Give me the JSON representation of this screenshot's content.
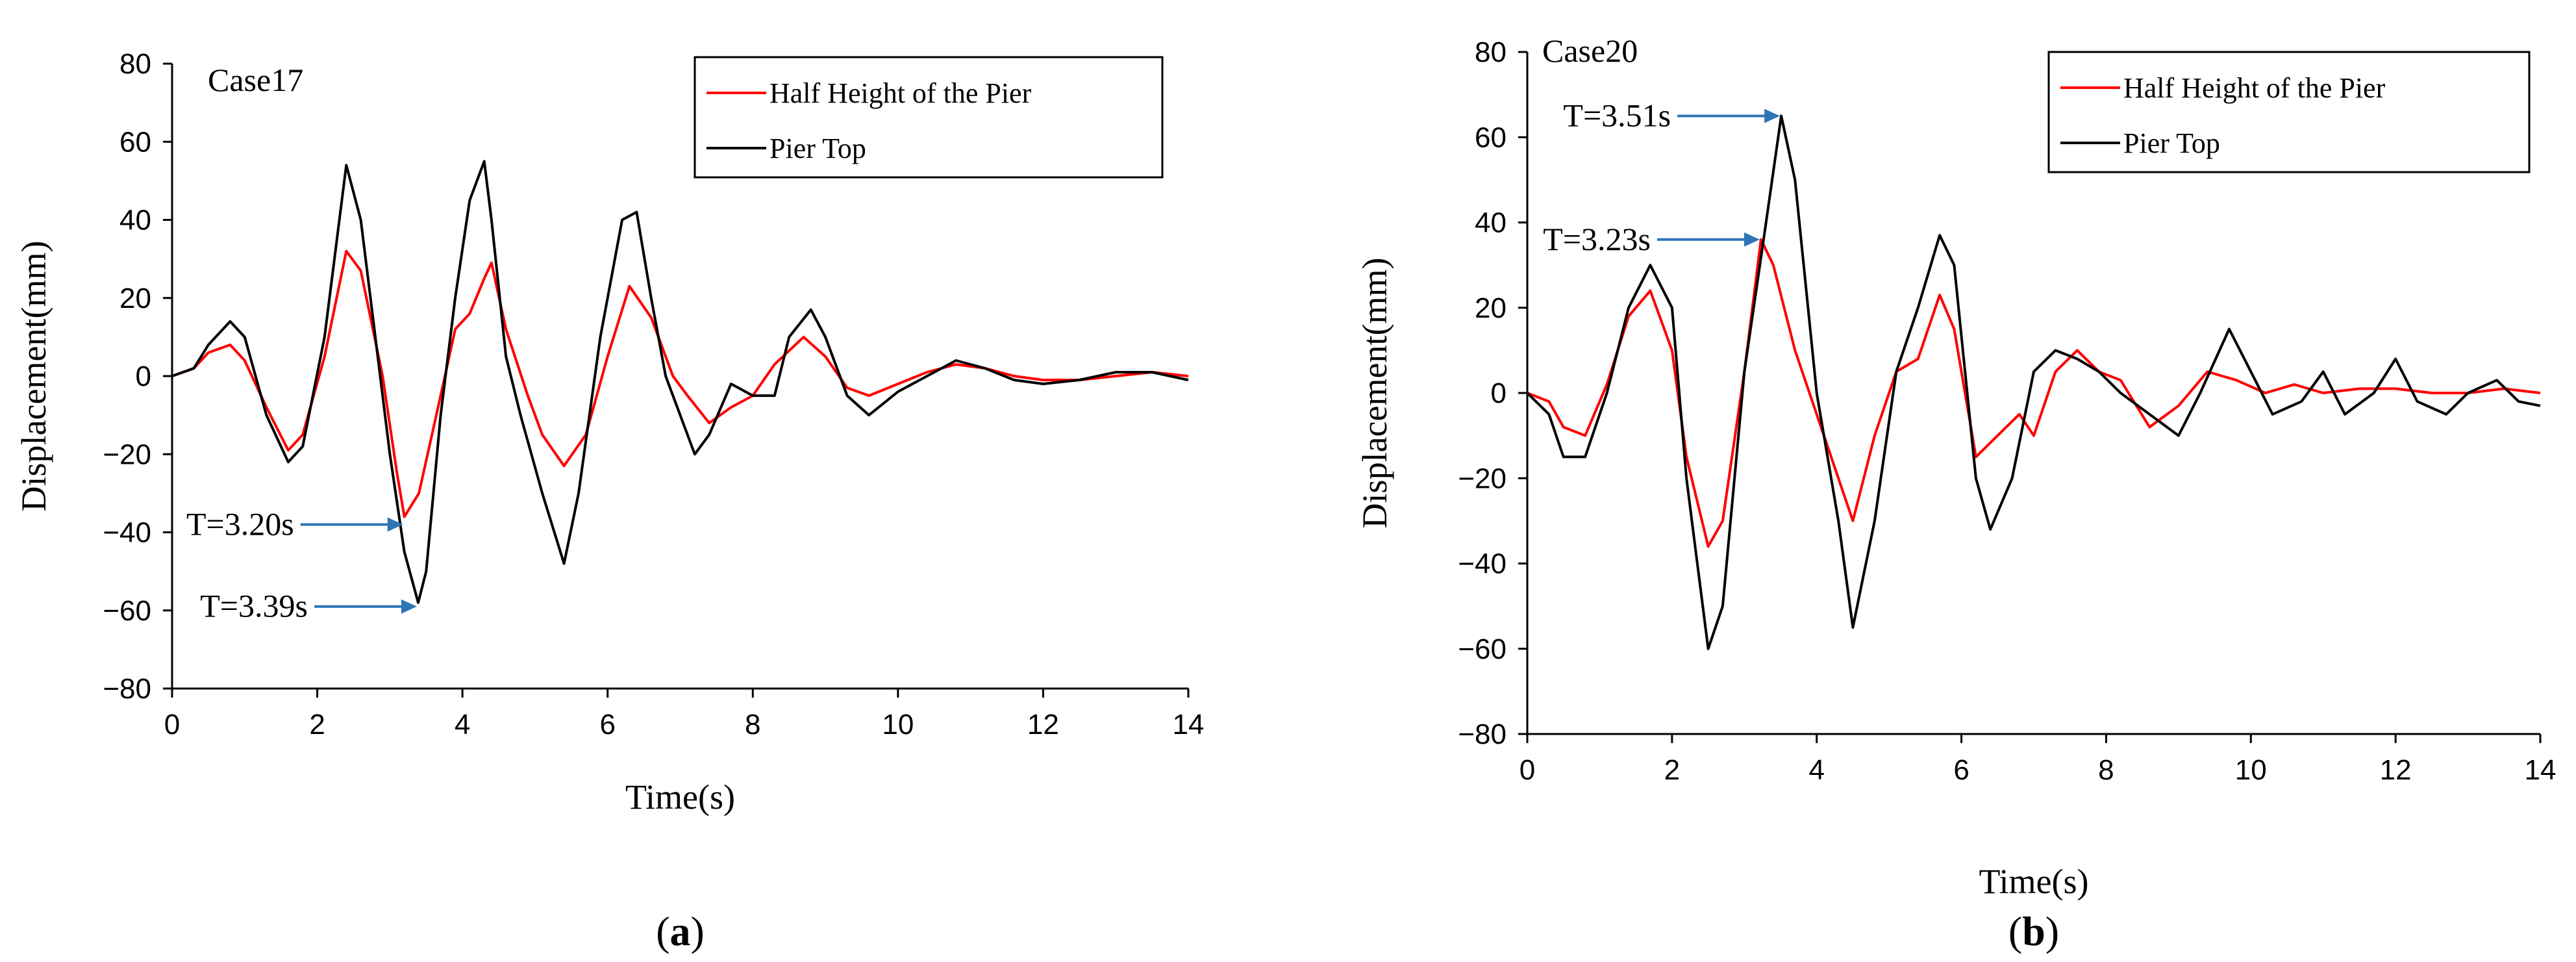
{
  "chart_data": [
    {
      "type": "line",
      "title": "Case17",
      "panel_label": "a",
      "xlabel": "Time(s)",
      "ylabel": "Displacement(mm)",
      "xlim": [
        0,
        14
      ],
      "ylim": [
        -80,
        80
      ],
      "x_ticks": [
        "0",
        "2",
        "4",
        "6",
        "8",
        "10",
        "12",
        "14"
      ],
      "y_ticks": [
        "80",
        "60",
        "40",
        "20",
        "0",
        "-20",
        "-40",
        "-60",
        "-80"
      ],
      "grid": false,
      "legend_position": "top-right",
      "series": [
        {
          "name": "Half Height of the Pier",
          "color": "#ff0000",
          "x": [
            0,
            0.3,
            0.5,
            0.8,
            1.0,
            1.3,
            1.6,
            1.8,
            2.1,
            2.4,
            2.6,
            2.9,
            3.1,
            3.2,
            3.4,
            3.7,
            3.9,
            4.1,
            4.3,
            4.4,
            4.6,
            4.9,
            5.1,
            5.4,
            5.7,
            6.0,
            6.3,
            6.6,
            6.9,
            7.1,
            7.4,
            7.7,
            8.0,
            8.3,
            8.7,
            9.0,
            9.3,
            9.6,
            10.0,
            10.4,
            10.8,
            11.2,
            11.6,
            12.0,
            12.5,
            13.0,
            13.5,
            14.0
          ],
          "values": [
            0,
            2,
            6,
            8,
            4,
            -8,
            -19,
            -15,
            5,
            32,
            27,
            0,
            -25,
            -36,
            -30,
            -5,
            12,
            16,
            25,
            29,
            12,
            -5,
            -15,
            -23,
            -15,
            5,
            23,
            15,
            0,
            -5,
            -12,
            -8,
            -5,
            3,
            10,
            5,
            -3,
            -5,
            -2,
            1,
            3,
            2,
            0,
            -1,
            -1,
            0,
            1,
            0
          ]
        },
        {
          "name": "Pier Top",
          "color": "#000000",
          "x": [
            0,
            0.3,
            0.5,
            0.8,
            1.0,
            1.3,
            1.6,
            1.8,
            2.1,
            2.4,
            2.6,
            2.8,
            3.0,
            3.2,
            3.39,
            3.5,
            3.7,
            3.9,
            4.1,
            4.3,
            4.4,
            4.6,
            4.8,
            5.1,
            5.4,
            5.6,
            5.9,
            6.2,
            6.4,
            6.6,
            6.8,
            7.0,
            7.2,
            7.4,
            7.7,
            8.0,
            8.3,
            8.5,
            8.8,
            9.0,
            9.3,
            9.6,
            10.0,
            10.4,
            10.8,
            11.2,
            11.6,
            12.0,
            12.5,
            13.0,
            13.5,
            14.0
          ],
          "values": [
            0,
            2,
            8,
            14,
            10,
            -10,
            -22,
            -18,
            10,
            54,
            40,
            10,
            -20,
            -45,
            -58,
            -50,
            -10,
            20,
            45,
            55,
            40,
            5,
            -10,
            -30,
            -48,
            -30,
            10,
            40,
            42,
            20,
            0,
            -10,
            -20,
            -15,
            -2,
            -5,
            -5,
            10,
            17,
            10,
            -5,
            -10,
            -4,
            0,
            4,
            2,
            -1,
            -2,
            -1,
            1,
            1,
            -1
          ]
        }
      ],
      "annotations": [
        {
          "text": "T=3.20s",
          "x": 3.2,
          "y": -38
        },
        {
          "text": "T=3.39s",
          "x": 3.39,
          "y": -59
        }
      ]
    },
    {
      "type": "line",
      "title": "Case20",
      "panel_label": "b",
      "xlabel": "Time(s)",
      "ylabel": "Displacement(mm)",
      "xlim": [
        0,
        14
      ],
      "ylim": [
        -80,
        80
      ],
      "x_ticks": [
        "0",
        "2",
        "4",
        "6",
        "8",
        "10",
        "12",
        "14"
      ],
      "y_ticks": [
        "80",
        "60",
        "40",
        "20",
        "0",
        "-20",
        "-40",
        "-60",
        "-80"
      ],
      "grid": false,
      "legend_position": "top-right",
      "series": [
        {
          "name": "Half Height of the Pier",
          "color": "#ff0000",
          "x": [
            0,
            0.3,
            0.5,
            0.8,
            1.1,
            1.4,
            1.7,
            2.0,
            2.2,
            2.5,
            2.7,
            3.0,
            3.23,
            3.4,
            3.7,
            4.0,
            4.3,
            4.5,
            4.8,
            5.1,
            5.4,
            5.7,
            5.9,
            6.2,
            6.5,
            6.8,
            7.0,
            7.3,
            7.6,
            7.9,
            8.2,
            8.6,
            9.0,
            9.4,
            9.8,
            10.2,
            10.6,
            11.0,
            11.5,
            12.0,
            12.5,
            13.0,
            13.5,
            14.0
          ],
          "values": [
            0,
            -2,
            -8,
            -10,
            2,
            18,
            24,
            10,
            -15,
            -36,
            -30,
            5,
            36,
            30,
            10,
            -5,
            -20,
            -30,
            -10,
            5,
            8,
            23,
            15,
            -15,
            -10,
            -5,
            -10,
            5,
            10,
            5,
            3,
            -8,
            -3,
            5,
            3,
            0,
            2,
            0,
            1,
            1,
            0,
            0,
            1,
            0
          ]
        },
        {
          "name": "Pier Top",
          "color": "#000000",
          "x": [
            0,
            0.3,
            0.5,
            0.8,
            1.1,
            1.4,
            1.7,
            2.0,
            2.2,
            2.5,
            2.7,
            3.0,
            3.3,
            3.51,
            3.7,
            4.0,
            4.3,
            4.5,
            4.8,
            5.1,
            5.4,
            5.7,
            5.9,
            6.2,
            6.4,
            6.7,
            7.0,
            7.3,
            7.6,
            7.9,
            8.2,
            8.6,
            9.0,
            9.3,
            9.7,
            10.0,
            10.3,
            10.7,
            11.0,
            11.3,
            11.7,
            12.0,
            12.3,
            12.7,
            13.0,
            13.4,
            13.7,
            14.0
          ],
          "values": [
            0,
            -5,
            -15,
            -15,
            0,
            20,
            30,
            20,
            -20,
            -60,
            -50,
            5,
            40,
            65,
            50,
            0,
            -30,
            -55,
            -30,
            5,
            20,
            37,
            30,
            -20,
            -32,
            -20,
            5,
            10,
            8,
            5,
            0,
            -5,
            -10,
            0,
            15,
            5,
            -5,
            -2,
            5,
            -5,
            0,
            8,
            -2,
            -5,
            0,
            3,
            -2,
            -3
          ]
        }
      ],
      "annotations": [
        {
          "text": "T=3.51s",
          "x": 3.51,
          "y": 65
        },
        {
          "text": "T=3.23s",
          "x": 3.23,
          "y": 36
        }
      ]
    }
  ]
}
